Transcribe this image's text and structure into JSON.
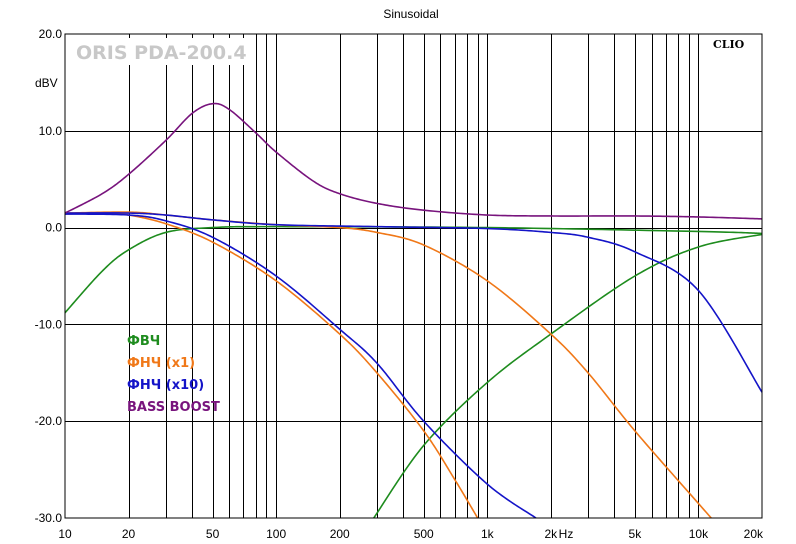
{
  "chart_data": {
    "type": "line",
    "title": "Sinusoidal",
    "brand_label": "ORIS PDA-200.4",
    "watermark": "CLIO",
    "ylabel": "dBV",
    "xlabel": "Hz",
    "x_scale": "log",
    "xlim": [
      10,
      20000
    ],
    "ylim": [
      -30,
      20
    ],
    "grid": true,
    "legend_position": "left-middle",
    "y_ticks": [
      {
        "value": 20,
        "label": "20.0"
      },
      {
        "value": 10,
        "label": "10.0"
      },
      {
        "value": 0,
        "label": "0.0"
      },
      {
        "value": -10,
        "label": "-10.0"
      },
      {
        "value": -20,
        "label": "-20.0"
      },
      {
        "value": -30,
        "label": "-30.0"
      }
    ],
    "x_ticks": [
      {
        "value": 10,
        "label": "10"
      },
      {
        "value": 20,
        "label": "20"
      },
      {
        "value": 50,
        "label": "50"
      },
      {
        "value": 100,
        "label": "100"
      },
      {
        "value": 200,
        "label": "200"
      },
      {
        "value": 500,
        "label": "500"
      },
      {
        "value": 1000,
        "label": "1k"
      },
      {
        "value": 2000,
        "label": "2k"
      },
      {
        "value": 5000,
        "label": "5k"
      },
      {
        "value": 10000,
        "label": "10k"
      },
      {
        "value": 20000,
        "label": "20k"
      }
    ],
    "series": [
      {
        "name": "ФВЧ",
        "color": "#1e8c1e",
        "points": [
          [
            10,
            -8.8
          ],
          [
            15,
            -4.5
          ],
          [
            20,
            -2.3
          ],
          [
            30,
            -0.5
          ],
          [
            50,
            0.0
          ],
          [
            100,
            0.1
          ],
          [
            1000,
            0.0
          ],
          [
            10000,
            -0.4
          ],
          [
            20000,
            -0.6
          ]
        ]
      },
      {
        "name": "ФВЧ",
        "color": "#1e8c1e",
        "points": [
          [
            290,
            -30.0
          ],
          [
            500,
            -22.5
          ],
          [
            1000,
            -16.0
          ],
          [
            2000,
            -11.0
          ],
          [
            5000,
            -5.0
          ],
          [
            10000,
            -2.0
          ],
          [
            20000,
            -0.7
          ]
        ]
      },
      {
        "name": "ФНЧ (x1)",
        "color": "#f07818",
        "points": [
          [
            10,
            1.5
          ],
          [
            20,
            1.6
          ],
          [
            30,
            1.3
          ],
          [
            50,
            0.8
          ],
          [
            100,
            0.3
          ],
          [
            200,
            0.0
          ],
          [
            300,
            -0.5
          ],
          [
            500,
            -1.8
          ],
          [
            1000,
            -5.5
          ],
          [
            2000,
            -11.0
          ],
          [
            3000,
            -15.0
          ],
          [
            5000,
            -21.0
          ],
          [
            10000,
            -28.5
          ],
          [
            11500,
            -30.0
          ]
        ]
      },
      {
        "name": "ФНЧ (x1)",
        "color": "#f07818",
        "points": [
          [
            10,
            1.4
          ],
          [
            15,
            1.5
          ],
          [
            20,
            1.3
          ],
          [
            30,
            0.4
          ],
          [
            50,
            -1.5
          ],
          [
            100,
            -5.5
          ],
          [
            200,
            -11.0
          ],
          [
            300,
            -15.0
          ],
          [
            500,
            -21.0
          ],
          [
            700,
            -26.0
          ],
          [
            900,
            -30.0
          ]
        ]
      },
      {
        "name": "ФНЧ (x10)",
        "color": "#1414c8",
        "points": [
          [
            10,
            1.5
          ],
          [
            20,
            1.5
          ],
          [
            30,
            1.3
          ],
          [
            50,
            0.8
          ],
          [
            100,
            0.3
          ],
          [
            300,
            0.1
          ],
          [
            1000,
            -0.1
          ],
          [
            2000,
            -0.5
          ],
          [
            3000,
            -1.0
          ],
          [
            5000,
            -2.5
          ],
          [
            10000,
            -6.5
          ],
          [
            20000,
            -17.0
          ]
        ]
      },
      {
        "name": "ФНЧ (x10)",
        "color": "#1414c8",
        "points": [
          [
            10,
            1.4
          ],
          [
            20,
            1.3
          ],
          [
            30,
            0.7
          ],
          [
            50,
            -1.0
          ],
          [
            100,
            -5.0
          ],
          [
            200,
            -10.5
          ],
          [
            300,
            -14.0
          ],
          [
            500,
            -20.0
          ],
          [
            1000,
            -26.5
          ],
          [
            1700,
            -30.0
          ]
        ]
      },
      {
        "name": "BASS BOOST",
        "color": "#78147d",
        "points": [
          [
            10,
            1.5
          ],
          [
            15,
            3.5
          ],
          [
            20,
            5.5
          ],
          [
            30,
            9.0
          ],
          [
            40,
            11.8
          ],
          [
            50,
            12.8
          ],
          [
            60,
            12.2
          ],
          [
            80,
            9.8
          ],
          [
            100,
            7.8
          ],
          [
            150,
            4.8
          ],
          [
            200,
            3.5
          ],
          [
            300,
            2.5
          ],
          [
            500,
            1.8
          ],
          [
            1000,
            1.3
          ],
          [
            2000,
            1.2
          ],
          [
            5000,
            1.2
          ],
          [
            10000,
            1.1
          ],
          [
            20000,
            0.9
          ]
        ]
      }
    ],
    "legend": [
      {
        "label": "ФВЧ",
        "color": "#1e8c1e"
      },
      {
        "label": "ФНЧ (x1)",
        "color": "#f07818"
      },
      {
        "label": "ФНЧ (x10)",
        "color": "#1414c8"
      },
      {
        "label": "BASS BOOST",
        "color": "#78147d"
      }
    ]
  }
}
